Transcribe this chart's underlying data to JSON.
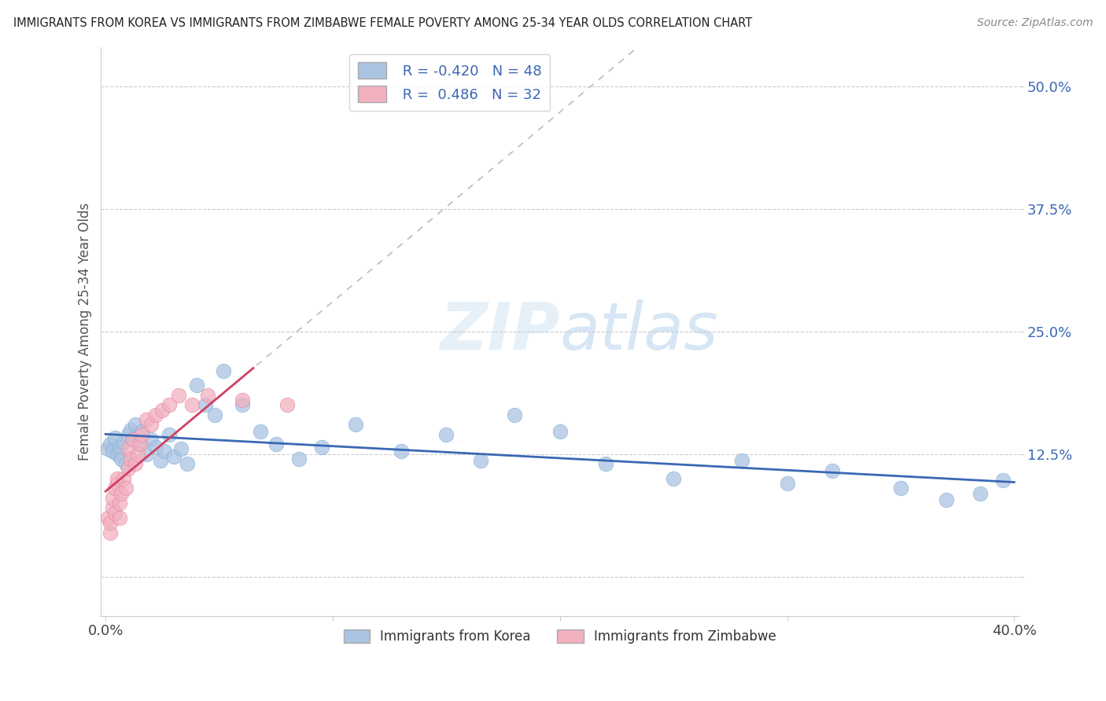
{
  "title": "IMMIGRANTS FROM KOREA VS IMMIGRANTS FROM ZIMBABWE FEMALE POVERTY AMONG 25-34 YEAR OLDS CORRELATION CHART",
  "source": "Source: ZipAtlas.com",
  "ylabel": "Female Poverty Among 25-34 Year Olds",
  "xlim": [
    -0.002,
    0.402
  ],
  "ylim": [
    -0.04,
    0.54
  ],
  "ytick_vals": [
    0.0,
    0.125,
    0.25,
    0.375,
    0.5
  ],
  "ytick_labels": [
    "",
    "12.5%",
    "25.0%",
    "37.5%",
    "50.0%"
  ],
  "xtick_vals": [
    0.0,
    0.1,
    0.2,
    0.3,
    0.4
  ],
  "xtick_labels": [
    "0.0%",
    "",
    "",
    "",
    "40.0%"
  ],
  "korea_R": -0.42,
  "korea_N": 48,
  "zimbabwe_R": 0.486,
  "zimbabwe_N": 32,
  "korea_color": "#aac4e2",
  "korea_edge_color": "#7aaad4",
  "korea_line_color": "#3a68b4",
  "zimbabwe_color": "#f2b0bf",
  "zimbabwe_edge_color": "#e080a0",
  "zimbabwe_line_color": "#d04060",
  "watermark_zip": "ZIP",
  "watermark_atlas": "atlas",
  "background_color": "#ffffff",
  "korea_x": [
    0.001,
    0.002,
    0.003,
    0.004,
    0.005,
    0.006,
    0.007,
    0.008,
    0.009,
    0.01,
    0.011,
    0.012,
    0.013,
    0.015,
    0.016,
    0.018,
    0.02,
    0.022,
    0.024,
    0.026,
    0.028,
    0.03,
    0.033,
    0.036,
    0.04,
    0.044,
    0.048,
    0.052,
    0.06,
    0.068,
    0.075,
    0.085,
    0.095,
    0.11,
    0.13,
    0.15,
    0.165,
    0.18,
    0.2,
    0.22,
    0.25,
    0.28,
    0.3,
    0.32,
    0.35,
    0.37,
    0.385,
    0.395
  ],
  "korea_y": [
    0.13,
    0.135,
    0.128,
    0.142,
    0.125,
    0.132,
    0.12,
    0.138,
    0.115,
    0.145,
    0.15,
    0.14,
    0.155,
    0.135,
    0.148,
    0.125,
    0.14,
    0.132,
    0.118,
    0.128,
    0.145,
    0.122,
    0.13,
    0.115,
    0.195,
    0.175,
    0.165,
    0.21,
    0.175,
    0.148,
    0.135,
    0.12,
    0.132,
    0.155,
    0.128,
    0.145,
    0.118,
    0.165,
    0.148,
    0.115,
    0.1,
    0.118,
    0.095,
    0.108,
    0.09,
    0.078,
    0.085,
    0.098
  ],
  "zimbabwe_x": [
    0.001,
    0.002,
    0.002,
    0.003,
    0.003,
    0.004,
    0.004,
    0.005,
    0.005,
    0.006,
    0.006,
    0.007,
    0.008,
    0.009,
    0.01,
    0.01,
    0.011,
    0.012,
    0.013,
    0.014,
    0.015,
    0.016,
    0.018,
    0.02,
    0.022,
    0.025,
    0.028,
    0.032,
    0.038,
    0.045,
    0.06,
    0.08
  ],
  "zimbabwe_y": [
    0.06,
    0.045,
    0.055,
    0.07,
    0.08,
    0.065,
    0.09,
    0.095,
    0.1,
    0.06,
    0.075,
    0.085,
    0.1,
    0.09,
    0.11,
    0.13,
    0.12,
    0.14,
    0.115,
    0.125,
    0.135,
    0.145,
    0.16,
    0.155,
    0.165,
    0.17,
    0.175,
    0.185,
    0.175,
    0.185,
    0.18,
    0.175
  ],
  "zimbabwe_line_xmax": 0.065,
  "grid_color": "#cccccc",
  "grid_linestyle": "--",
  "spine_color": "#cccccc"
}
